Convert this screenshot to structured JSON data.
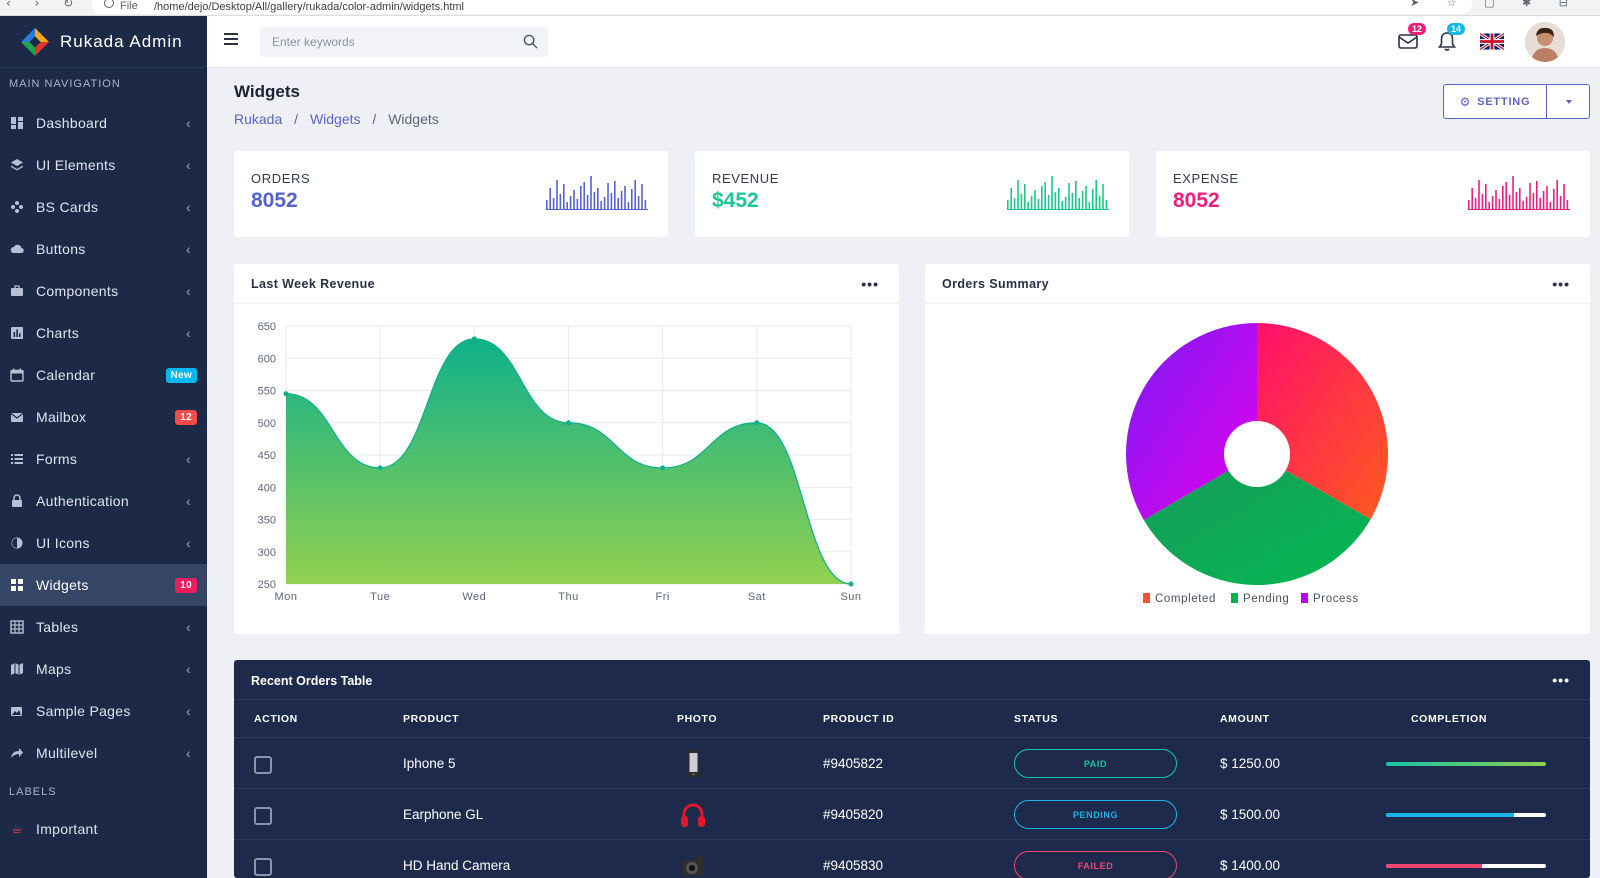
{
  "browser": {
    "nav_glyphs": "‹ › ↻",
    "file_label": "File",
    "url": "/home/dejo/Desktop/All/gallery/rukada/color-admin/widgets.html",
    "ext_glyphs": "➤ ☆ ▢ ✱ ⊟"
  },
  "brand": {
    "name": "Rukada Admin"
  },
  "sidebar": {
    "section_main": "MAIN NAVIGATION",
    "section_labels": "LABELS",
    "items": [
      {
        "label": "Dashboard",
        "icon": "dashboard-icon",
        "chevron": "‹"
      },
      {
        "label": "UI Elements",
        "icon": "layers-icon",
        "chevron": "‹"
      },
      {
        "label": "BS Cards",
        "icon": "cards-icon",
        "chevron": "‹"
      },
      {
        "label": "Buttons",
        "icon": "cloud-icon",
        "chevron": "‹"
      },
      {
        "label": "Components",
        "icon": "briefcase-icon",
        "chevron": "‹"
      },
      {
        "label": "Charts",
        "icon": "chart-icon",
        "chevron": "‹"
      },
      {
        "label": "Calendar",
        "icon": "calendar-icon",
        "badge": "New"
      },
      {
        "label": "Mailbox",
        "icon": "mail-icon",
        "badge": "12"
      },
      {
        "label": "Forms",
        "icon": "list-icon",
        "chevron": "‹"
      },
      {
        "label": "Authentication",
        "icon": "lock-icon",
        "chevron": "‹"
      },
      {
        "label": "UI Icons",
        "icon": "drop-icon",
        "chevron": "‹"
      },
      {
        "label": "Widgets",
        "icon": "widgets-icon",
        "badge": "10"
      },
      {
        "label": "Tables",
        "icon": "table-icon",
        "chevron": "‹"
      },
      {
        "label": "Maps",
        "icon": "map-icon",
        "chevron": "‹"
      },
      {
        "label": "Sample Pages",
        "icon": "images-icon",
        "chevron": "‹"
      },
      {
        "label": "Multilevel",
        "icon": "share-icon",
        "chevron": "‹"
      }
    ],
    "labels": [
      {
        "label": "Important",
        "icon": "coffee-icon"
      }
    ]
  },
  "topbar": {
    "search_placeholder": "Enter keywords",
    "mail_count": "12",
    "notif_count": "14"
  },
  "page": {
    "title": "Widgets",
    "breadcrumb": [
      "Rukada",
      "Widgets",
      "Widgets"
    ],
    "breadcrumb_sep": "/",
    "setting_label": "SETTING",
    "more_glyph": "•••"
  },
  "stats": [
    {
      "label": "ORDERS",
      "value": "8052",
      "color": "#5561d6"
    },
    {
      "label": "REVENUE",
      "value": "$452",
      "color": "#19c98f"
    },
    {
      "label": "EXPENSE",
      "value": "8052",
      "color": "#ec1e7e"
    }
  ],
  "revenue_panel": {
    "title": "Last Week Revenue"
  },
  "orders_panel": {
    "title": "Orders Summary"
  },
  "chart_data": [
    {
      "type": "area",
      "title": "Last Week Revenue",
      "categories": [
        "Mon",
        "Tue",
        "Wed",
        "Thu",
        "Fri",
        "Sat",
        "Sun"
      ],
      "values": [
        545,
        430,
        630,
        500,
        430,
        500,
        250
      ],
      "ylim": [
        250,
        650
      ],
      "yticks": [
        650,
        600,
        550,
        500,
        450,
        400,
        350,
        300,
        250
      ],
      "grid": true,
      "colors": [
        "#0fb08a",
        "#92d050"
      ]
    },
    {
      "type": "pie",
      "title": "Orders Summary",
      "labels": [
        "Completed",
        "Pending",
        "Process"
      ],
      "values": [
        33.3,
        33.3,
        33.4
      ],
      "colors": [
        "#ff4f2e",
        "#07b052",
        "#b900f6"
      ],
      "legend": "bottom"
    }
  ],
  "orders_table": {
    "title": "Recent Orders Table",
    "columns": [
      "ACTION",
      "PRODUCT",
      "PHOTO",
      "PRODUCT ID",
      "STATUS",
      "AMOUNT",
      "COMPLETION"
    ],
    "rows": [
      {
        "product": "Iphone 5",
        "photo": "phone-icon",
        "id": "#9405822",
        "status": "PAID",
        "status_color": "#17c3a5",
        "amount": "$ 1250.00",
        "completion": 1.0,
        "bar_color": "#17c3a5"
      },
      {
        "product": "Earphone GL",
        "photo": "headphones-icon",
        "id": "#9405820",
        "status": "PENDING",
        "status_color": "#18b4e8",
        "amount": "$ 1500.00",
        "completion": 0.8,
        "bar_color": "#18b4e8"
      },
      {
        "product": "HD Hand Camera",
        "photo": "camera-icon",
        "id": "#9405830",
        "status": "FAILED",
        "status_color": "#f24570",
        "amount": "$ 1400.00",
        "completion": 0.6,
        "bar_color": "#f24570"
      }
    ]
  }
}
